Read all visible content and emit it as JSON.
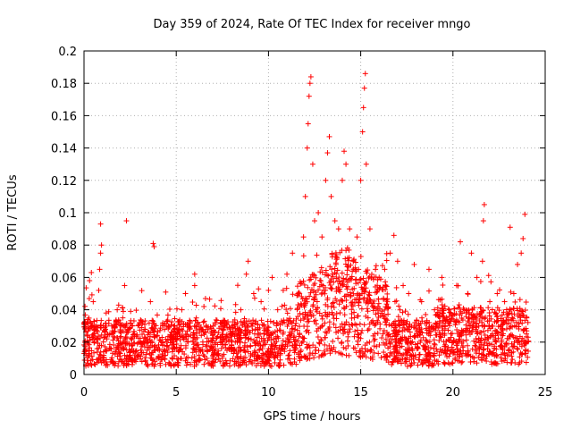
{
  "chart_data": {
    "type": "scatter",
    "title": "Day 359 of 2024, Rate Of TEC Index for receiver mngo",
    "xlabel": "GPS time / hours",
    "ylabel": "ROTI / TECUs",
    "xlim": [
      0,
      25
    ],
    "ylim": [
      0,
      0.2
    ],
    "xticks": [
      "0",
      "5",
      "10",
      "15",
      "20",
      "25"
    ],
    "yticks": [
      "0",
      "0.02",
      "0.04",
      "0.06",
      "0.08",
      "0.1",
      "0.12",
      "0.14",
      "0.16",
      "0.18",
      "0.2"
    ],
    "grid": true,
    "marker": "+",
    "color": "#ff0000",
    "series": [
      {
        "name": "ROTI",
        "points": [
          [
            0.1,
            0.012
          ],
          [
            0.2,
            0.034
          ],
          [
            0.3,
            0.058
          ],
          [
            0.4,
            0.063
          ],
          [
            0.5,
            0.045
          ],
          [
            0.6,
            0.028
          ],
          [
            0.8,
            0.052
          ],
          [
            0.85,
            0.065
          ],
          [
            0.9,
            0.075
          ],
          [
            0.95,
            0.08
          ],
          [
            0.9,
            0.093
          ],
          [
            1.2,
            0.038
          ],
          [
            1.5,
            0.03
          ],
          [
            1.8,
            0.04
          ],
          [
            2.1,
            0.035
          ],
          [
            2.2,
            0.055
          ],
          [
            2.3,
            0.095
          ],
          [
            2.6,
            0.03
          ],
          [
            3.0,
            0.032
          ],
          [
            3.3,
            0.028
          ],
          [
            3.6,
            0.045
          ],
          [
            3.75,
            0.081
          ],
          [
            3.8,
            0.079
          ],
          [
            4.2,
            0.02
          ],
          [
            4.6,
            0.03
          ],
          [
            5.0,
            0.025
          ],
          [
            5.3,
            0.04
          ],
          [
            5.5,
            0.05
          ],
          [
            6.0,
            0.055
          ],
          [
            6.0,
            0.062
          ],
          [
            6.5,
            0.042
          ],
          [
            7.0,
            0.03
          ],
          [
            7.5,
            0.028
          ],
          [
            8.0,
            0.03
          ],
          [
            8.5,
            0.04
          ],
          [
            8.8,
            0.062
          ],
          [
            8.9,
            0.07
          ],
          [
            9.2,
            0.05
          ],
          [
            9.6,
            0.045
          ],
          [
            10.0,
            0.052
          ],
          [
            10.2,
            0.06
          ],
          [
            10.5,
            0.04
          ],
          [
            10.8,
            0.052
          ],
          [
            11.0,
            0.062
          ],
          [
            11.3,
            0.075
          ],
          [
            11.6,
            0.05
          ],
          [
            11.9,
            0.085
          ],
          [
            12.0,
            0.11
          ],
          [
            12.1,
            0.14
          ],
          [
            12.15,
            0.155
          ],
          [
            12.2,
            0.172
          ],
          [
            12.25,
            0.18
          ],
          [
            12.3,
            0.184
          ],
          [
            12.4,
            0.13
          ],
          [
            12.5,
            0.095
          ],
          [
            12.7,
            0.1
          ],
          [
            12.9,
            0.085
          ],
          [
            13.1,
            0.12
          ],
          [
            13.2,
            0.137
          ],
          [
            13.3,
            0.147
          ],
          [
            13.4,
            0.11
          ],
          [
            13.6,
            0.095
          ],
          [
            13.8,
            0.09
          ],
          [
            14.0,
            0.12
          ],
          [
            14.1,
            0.138
          ],
          [
            14.2,
            0.13
          ],
          [
            14.4,
            0.09
          ],
          [
            14.6,
            0.07
          ],
          [
            14.8,
            0.085
          ],
          [
            15.0,
            0.12
          ],
          [
            15.1,
            0.15
          ],
          [
            15.15,
            0.165
          ],
          [
            15.2,
            0.177
          ],
          [
            15.25,
            0.186
          ],
          [
            15.3,
            0.13
          ],
          [
            15.5,
            0.09
          ],
          [
            15.8,
            0.065
          ],
          [
            16.0,
            0.06
          ],
          [
            16.3,
            0.065
          ],
          [
            16.6,
            0.075
          ],
          [
            16.8,
            0.086
          ],
          [
            17.0,
            0.07
          ],
          [
            17.3,
            0.055
          ],
          [
            17.6,
            0.05
          ],
          [
            17.9,
            0.068
          ],
          [
            18.3,
            0.045
          ],
          [
            18.7,
            0.065
          ],
          [
            19.0,
            0.04
          ],
          [
            19.4,
            0.06
          ],
          [
            19.8,
            0.04
          ],
          [
            20.2,
            0.055
          ],
          [
            20.4,
            0.082
          ],
          [
            20.8,
            0.05
          ],
          [
            21.0,
            0.075
          ],
          [
            21.3,
            0.06
          ],
          [
            21.6,
            0.07
          ],
          [
            21.65,
            0.095
          ],
          [
            21.7,
            0.105
          ],
          [
            22.0,
            0.045
          ],
          [
            22.4,
            0.05
          ],
          [
            22.8,
            0.045
          ],
          [
            23.1,
            0.091
          ],
          [
            23.3,
            0.05
          ],
          [
            23.5,
            0.068
          ],
          [
            23.7,
            0.075
          ],
          [
            23.8,
            0.084
          ],
          [
            23.9,
            0.099
          ],
          [
            24.0,
            0.035
          ]
        ]
      }
    ]
  }
}
